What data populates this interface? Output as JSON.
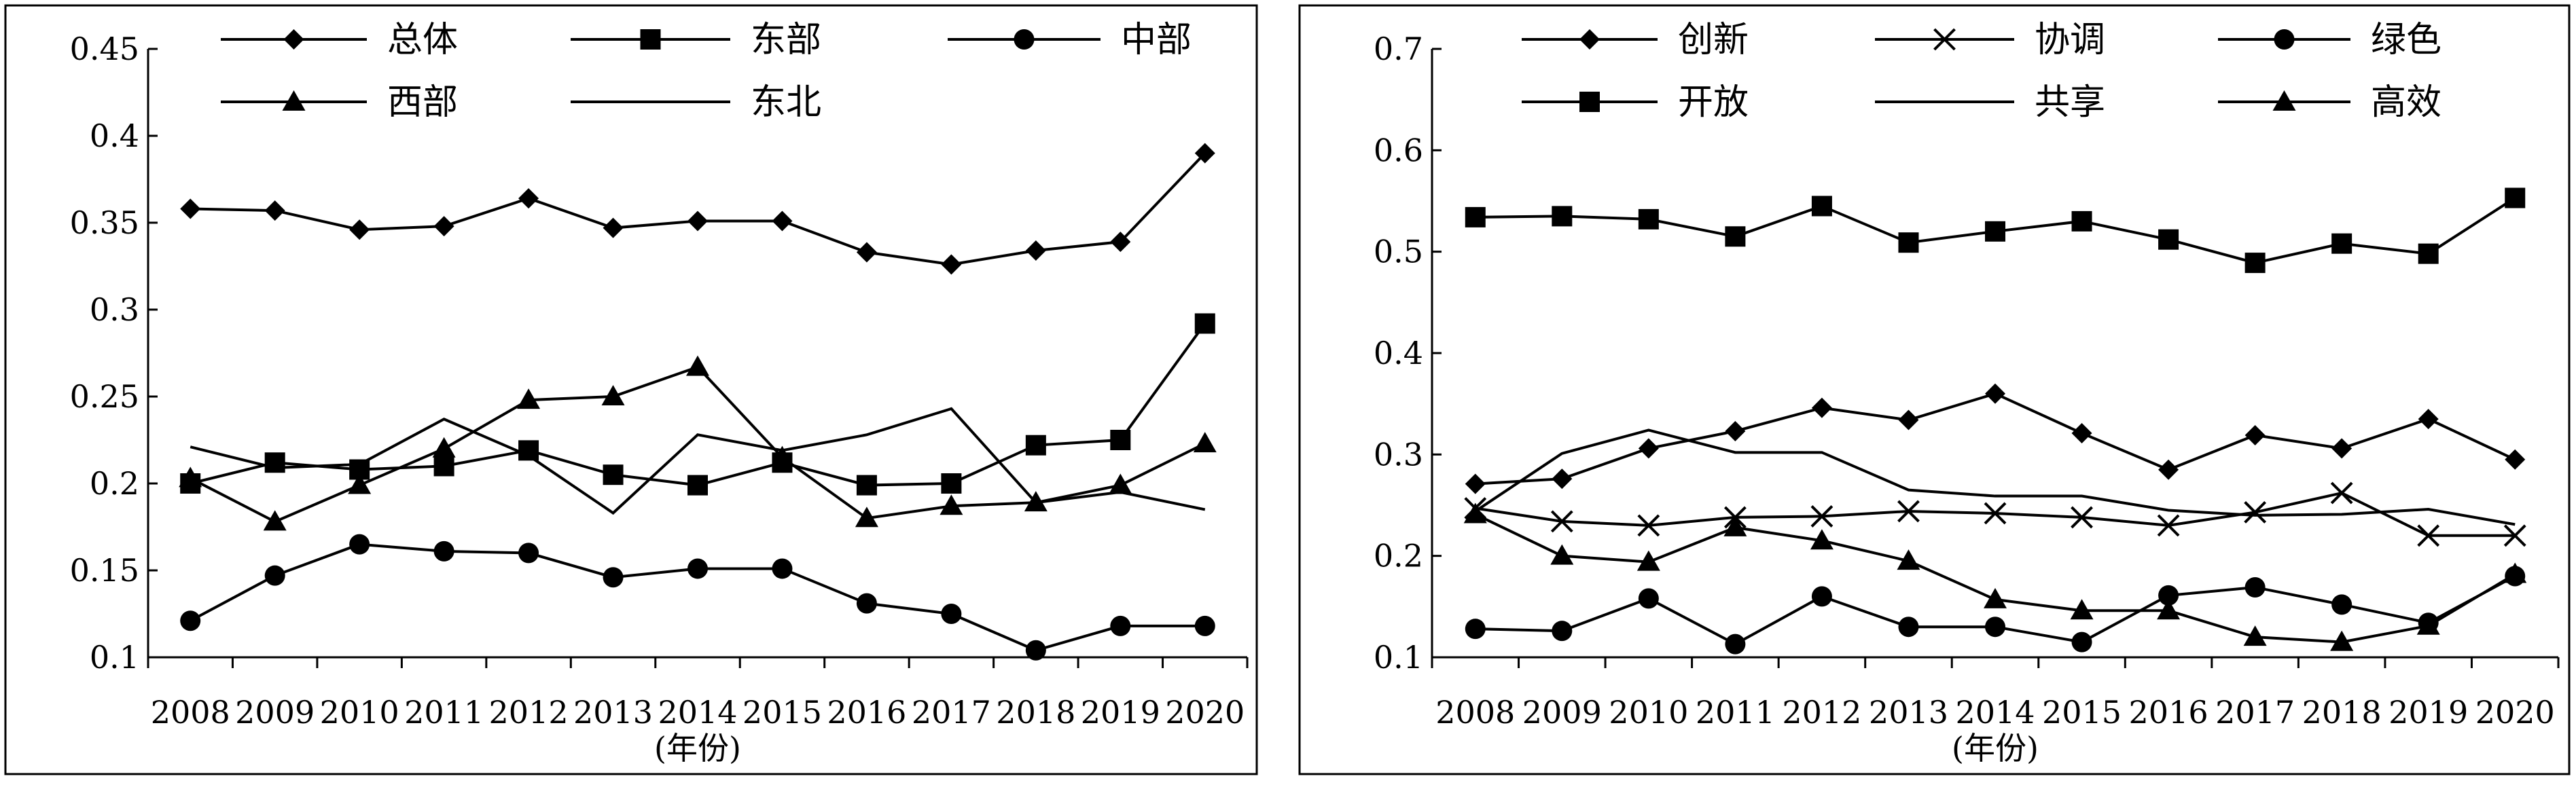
{
  "chart_data": [
    {
      "type": "line",
      "title": "",
      "xlabel": "(年份)",
      "ylabel": "",
      "categories": [
        "2008",
        "2009",
        "2010",
        "2011",
        "2012",
        "2013",
        "2014",
        "2015",
        "2016",
        "2017",
        "2018",
        "2019",
        "2020"
      ],
      "ylim": [
        0.1,
        0.45
      ],
      "yticks": [
        0.1,
        0.15,
        0.2,
        0.25,
        0.3,
        0.35,
        0.4,
        0.45
      ],
      "ytick_labels": [
        "0.1",
        "0.15",
        "0.2",
        "0.25",
        "0.3",
        "0.35",
        "0.4",
        "0.45"
      ],
      "grid": false,
      "legend_position": "top",
      "series": [
        {
          "name": "总体",
          "marker": "diamond",
          "values": [
            0.358,
            0.357,
            0.346,
            0.348,
            0.364,
            0.347,
            0.351,
            0.351,
            0.333,
            0.326,
            0.334,
            0.339,
            0.39
          ]
        },
        {
          "name": "东部",
          "marker": "square",
          "values": [
            0.2,
            0.212,
            0.208,
            0.21,
            0.219,
            0.205,
            0.199,
            0.212,
            0.199,
            0.2,
            0.222,
            0.225,
            0.292
          ]
        },
        {
          "name": "中部",
          "marker": "circle",
          "values": [
            0.121,
            0.147,
            0.165,
            0.161,
            0.16,
            0.146,
            0.151,
            0.151,
            0.131,
            0.125,
            0.104,
            0.118,
            0.118
          ]
        },
        {
          "name": "西部",
          "marker": "triangle",
          "values": [
            0.203,
            0.178,
            0.199,
            0.22,
            0.248,
            0.25,
            0.267,
            0.215,
            0.18,
            0.187,
            0.189,
            0.199,
            0.223
          ]
        },
        {
          "name": "东北",
          "marker": "none",
          "values": [
            0.221,
            0.209,
            0.211,
            0.237,
            0.216,
            0.183,
            0.228,
            0.219,
            0.228,
            0.243,
            0.189,
            0.195,
            0.185
          ]
        }
      ]
    },
    {
      "type": "line",
      "title": "",
      "xlabel": "(年份)",
      "ylabel": "",
      "categories": [
        "2008",
        "2009",
        "2010",
        "2011",
        "2012",
        "2013",
        "2014",
        "2015",
        "2016",
        "2017",
        "2018",
        "2019",
        "2020"
      ],
      "ylim": [
        0.1,
        0.7
      ],
      "yticks": [
        0.1,
        0.2,
        0.3,
        0.4,
        0.5,
        0.6,
        0.7
      ],
      "ytick_labels": [
        "0.1",
        "0.2",
        "0.3",
        "0.4",
        "0.5",
        "0.6",
        "0.7"
      ],
      "grid": false,
      "legend_position": "top",
      "series": [
        {
          "name": "创新",
          "marker": "diamond",
          "values": [
            0.271,
            0.276,
            0.306,
            0.323,
            0.346,
            0.334,
            0.36,
            0.321,
            0.285,
            0.319,
            0.306,
            0.335,
            0.295
          ]
        },
        {
          "name": "协调",
          "marker": "x",
          "values": [
            0.247,
            0.234,
            0.23,
            0.238,
            0.239,
            0.244,
            0.242,
            0.238,
            0.23,
            0.243,
            0.262,
            0.22,
            0.22
          ]
        },
        {
          "name": "绿色",
          "marker": "circle",
          "values": [
            0.128,
            0.126,
            0.158,
            0.113,
            0.16,
            0.13,
            0.13,
            0.115,
            0.161,
            0.169,
            0.152,
            0.134,
            0.18
          ]
        },
        {
          "name": "开放",
          "marker": "square",
          "values": [
            0.534,
            0.535,
            0.532,
            0.515,
            0.545,
            0.509,
            0.52,
            0.53,
            0.512,
            0.489,
            0.508,
            0.498,
            0.553
          ]
        },
        {
          "name": "共享",
          "marker": "none",
          "values": [
            0.244,
            0.301,
            0.324,
            0.302,
            0.302,
            0.265,
            0.259,
            0.259,
            0.245,
            0.24,
            0.241,
            0.246,
            0.231
          ]
        },
        {
          "name": "高效",
          "marker": "triangle",
          "values": [
            0.241,
            0.2,
            0.194,
            0.228,
            0.215,
            0.195,
            0.157,
            0.146,
            0.146,
            0.12,
            0.115,
            0.131,
            0.182
          ]
        }
      ]
    }
  ]
}
